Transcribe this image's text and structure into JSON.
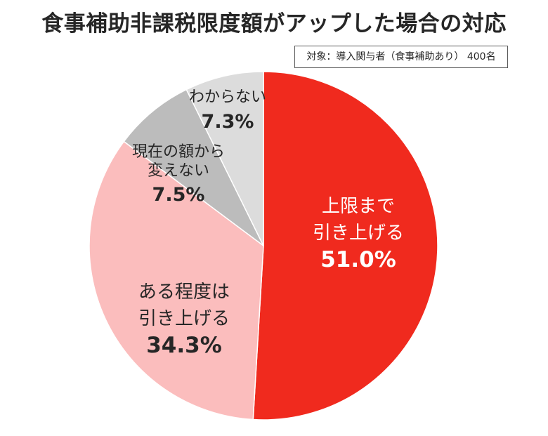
{
  "title": "食事補助非課税限度額がアップした場合の対応",
  "note": "対象：導入関与者（食事補助あり） 400名",
  "chart_data": {
    "type": "pie",
    "start": "12 o'clock, clockwise",
    "slices": [
      {
        "label_lines": [
          "上限まで",
          "引き上げる"
        ],
        "value": 51.0,
        "value_label": "51.0%",
        "color": "#f02a1e",
        "text_color": "#ffffff"
      },
      {
        "label_lines": [
          "ある程度は",
          "引き上げる"
        ],
        "value": 34.3,
        "value_label": "34.3%",
        "color": "#fbbdbd",
        "text_color": "#262626"
      },
      {
        "label_lines": [
          "現在の額から",
          "変えない"
        ],
        "value": 7.5,
        "value_label": "7.5%",
        "color": "#bcbcbc",
        "text_color": "#262626"
      },
      {
        "label_lines": [
          "わからない"
        ],
        "value": 7.3,
        "value_label": "7.3%",
        "color": "#dcdcdc",
        "text_color": "#262626"
      }
    ]
  }
}
